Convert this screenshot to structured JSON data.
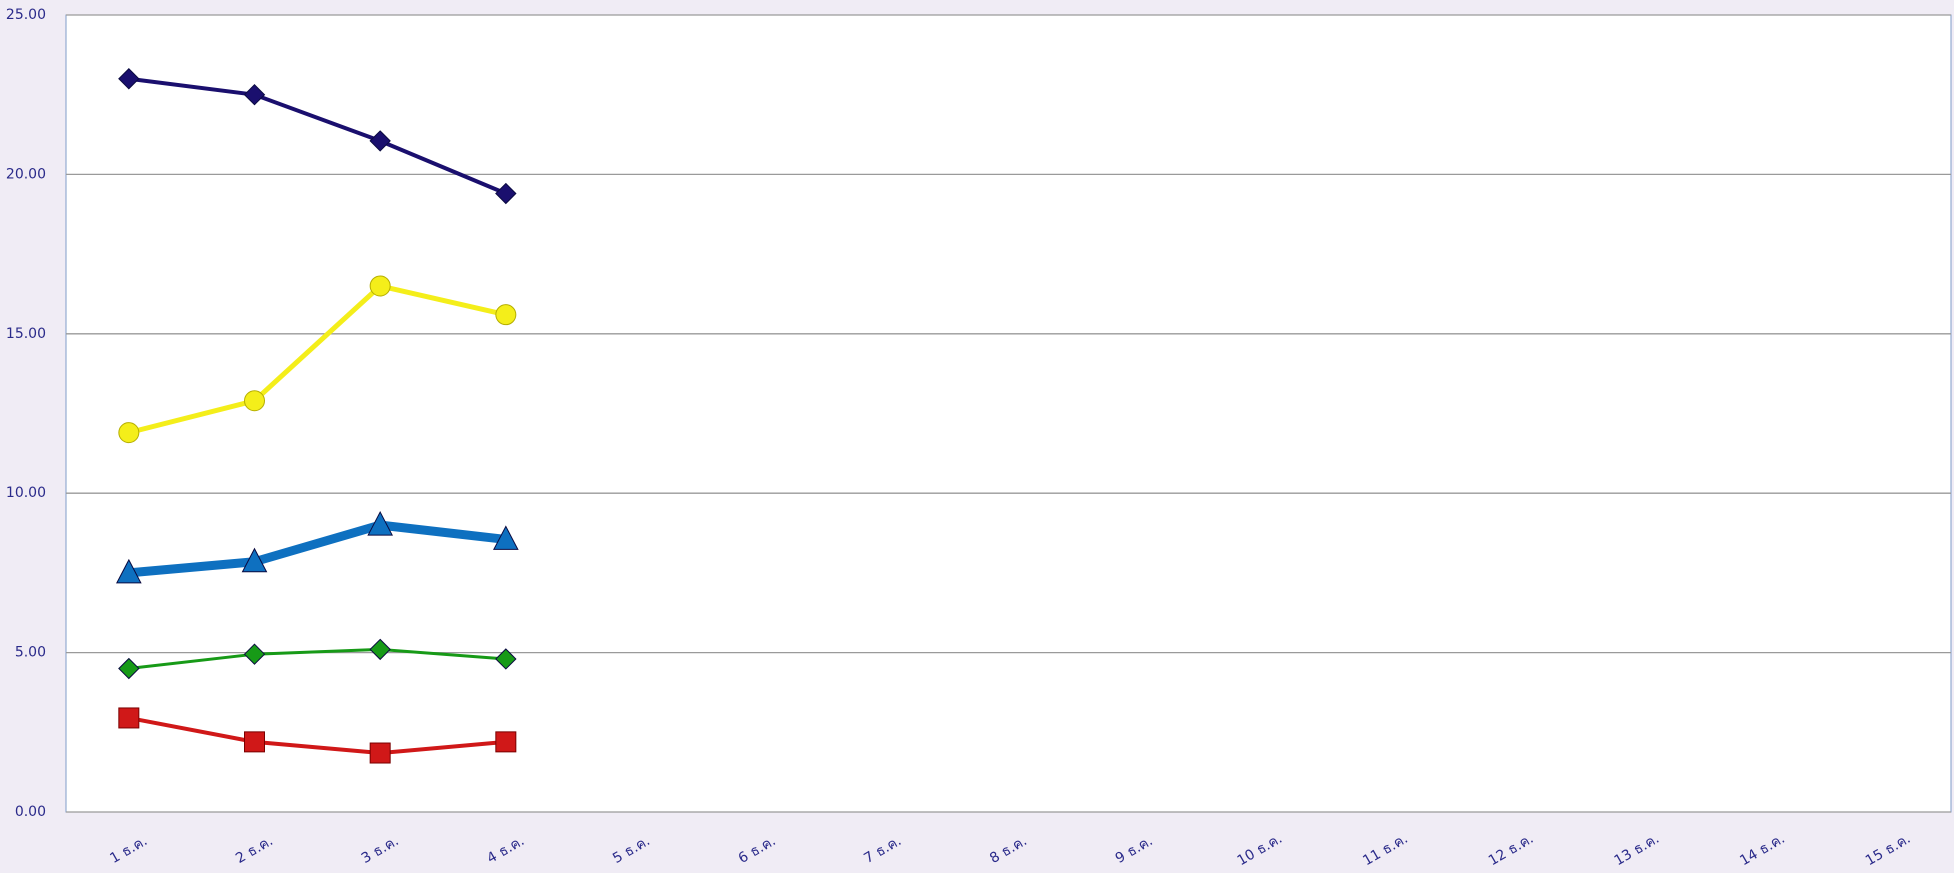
{
  "chart_data": {
    "type": "line",
    "categories": [
      "1 ธ.ค.",
      "2 ธ.ค.",
      "3 ธ.ค.",
      "4 ธ.ค.",
      "5 ธ.ค.",
      "6 ธ.ค.",
      "7 ธ.ค.",
      "8 ธ.ค.",
      "9 ธ.ค.",
      "10 ธ.ค.",
      "11 ธ.ค.",
      "12 ธ.ค.",
      "13 ธ.ค.",
      "14 ธ.ค.",
      "15 ธ.ค."
    ],
    "series": [
      {
        "color": "#1a0f6e",
        "marker": "diamond",
        "width": 4,
        "values": [
          23.0,
          22.5,
          21.05,
          19.4,
          null,
          null,
          null,
          null,
          null,
          null,
          null,
          null,
          null,
          null,
          null
        ]
      },
      {
        "color": "#f4ee1a",
        "marker": "circle",
        "width": 5,
        "values": [
          11.9,
          12.9,
          16.5,
          15.6,
          null,
          null,
          null,
          null,
          null,
          null,
          null,
          null,
          null,
          null,
          null
        ]
      },
      {
        "color": "#0e70c0",
        "marker": "triangle",
        "width": 9,
        "values": [
          7.5,
          7.85,
          9.0,
          8.55,
          null,
          null,
          null,
          null,
          null,
          null,
          null,
          null,
          null,
          null,
          null
        ]
      },
      {
        "color": "#179a17",
        "marker": "diamond",
        "width": 3,
        "values": [
          4.5,
          4.95,
          5.1,
          4.8,
          null,
          null,
          null,
          null,
          null,
          null,
          null,
          null,
          null,
          null,
          null
        ]
      },
      {
        "color": "#d01818",
        "marker": "square",
        "width": 4,
        "values": [
          2.95,
          2.2,
          1.85,
          2.2,
          null,
          null,
          null,
          null,
          null,
          null,
          null,
          null,
          null,
          null,
          null
        ]
      }
    ],
    "ylim": [
      0,
      25
    ],
    "yticks": [
      {
        "value": 0,
        "label": "0.00"
      },
      {
        "value": 5,
        "label": "5.00"
      },
      {
        "value": 10,
        "label": "10.00"
      },
      {
        "value": 15,
        "label": "15.00"
      },
      {
        "value": 20,
        "label": "20.00"
      },
      {
        "value": 25,
        "label": "25.00"
      }
    ],
    "grid": true
  }
}
